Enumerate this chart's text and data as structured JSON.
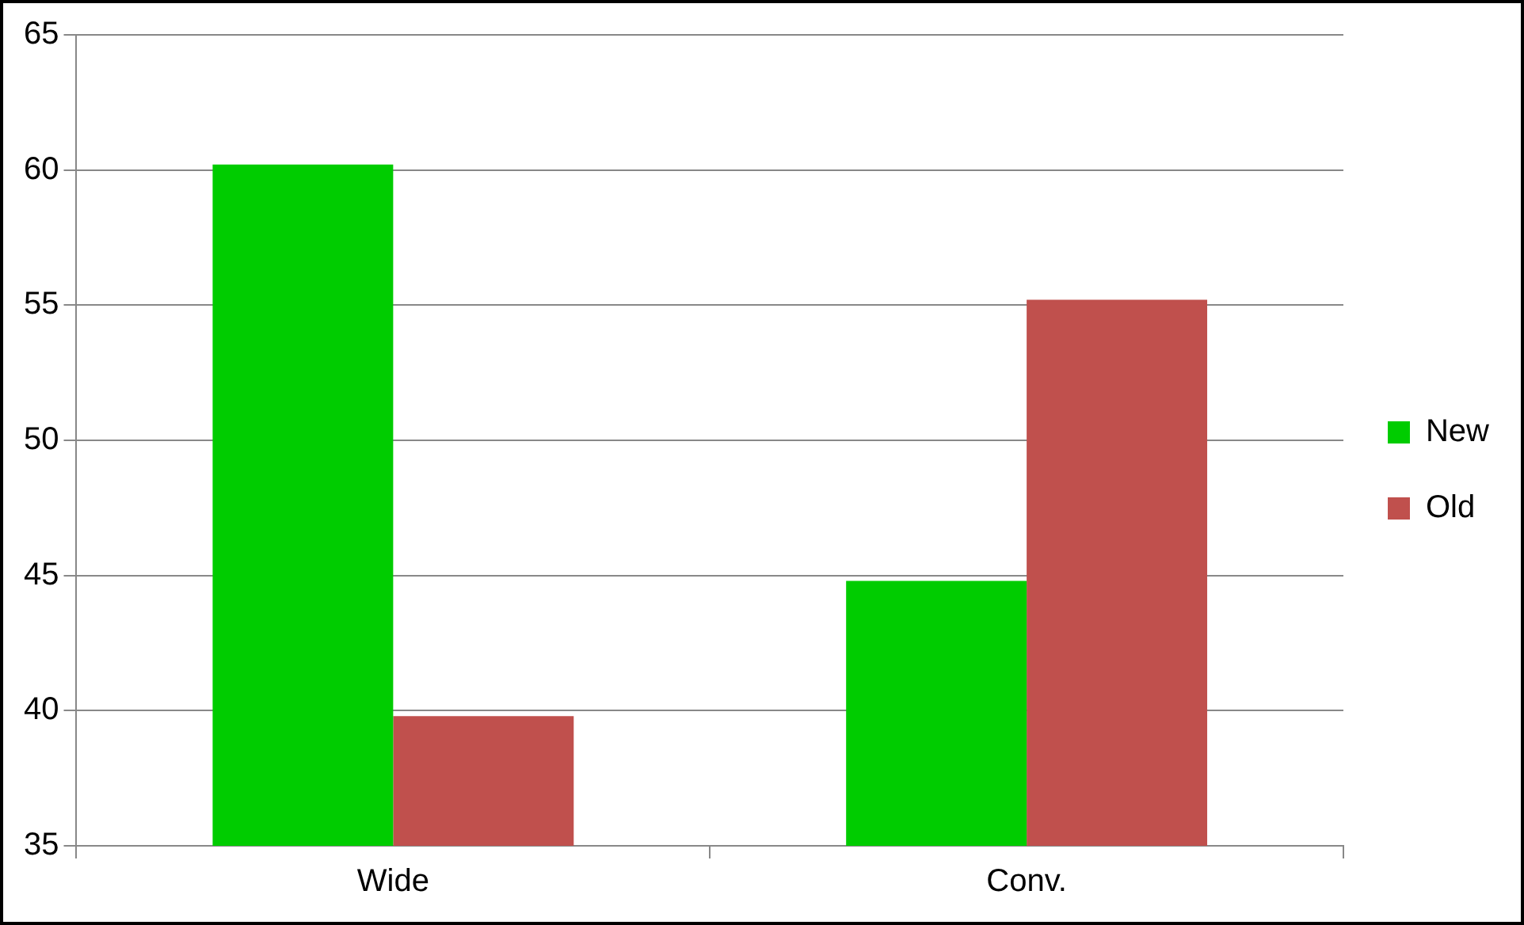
{
  "chart_data": {
    "type": "bar",
    "categories": [
      "Wide",
      "Conv."
    ],
    "series": [
      {
        "name": "New",
        "color": "#00cc00",
        "values": [
          60.2,
          44.8
        ]
      },
      {
        "name": "Old",
        "color": "#c0504d",
        "values": [
          39.8,
          55.2
        ]
      }
    ],
    "ylim": [
      35,
      65
    ],
    "yticks": [
      35,
      40,
      45,
      50,
      55,
      60,
      65
    ],
    "grid": "y",
    "legend": "right"
  }
}
